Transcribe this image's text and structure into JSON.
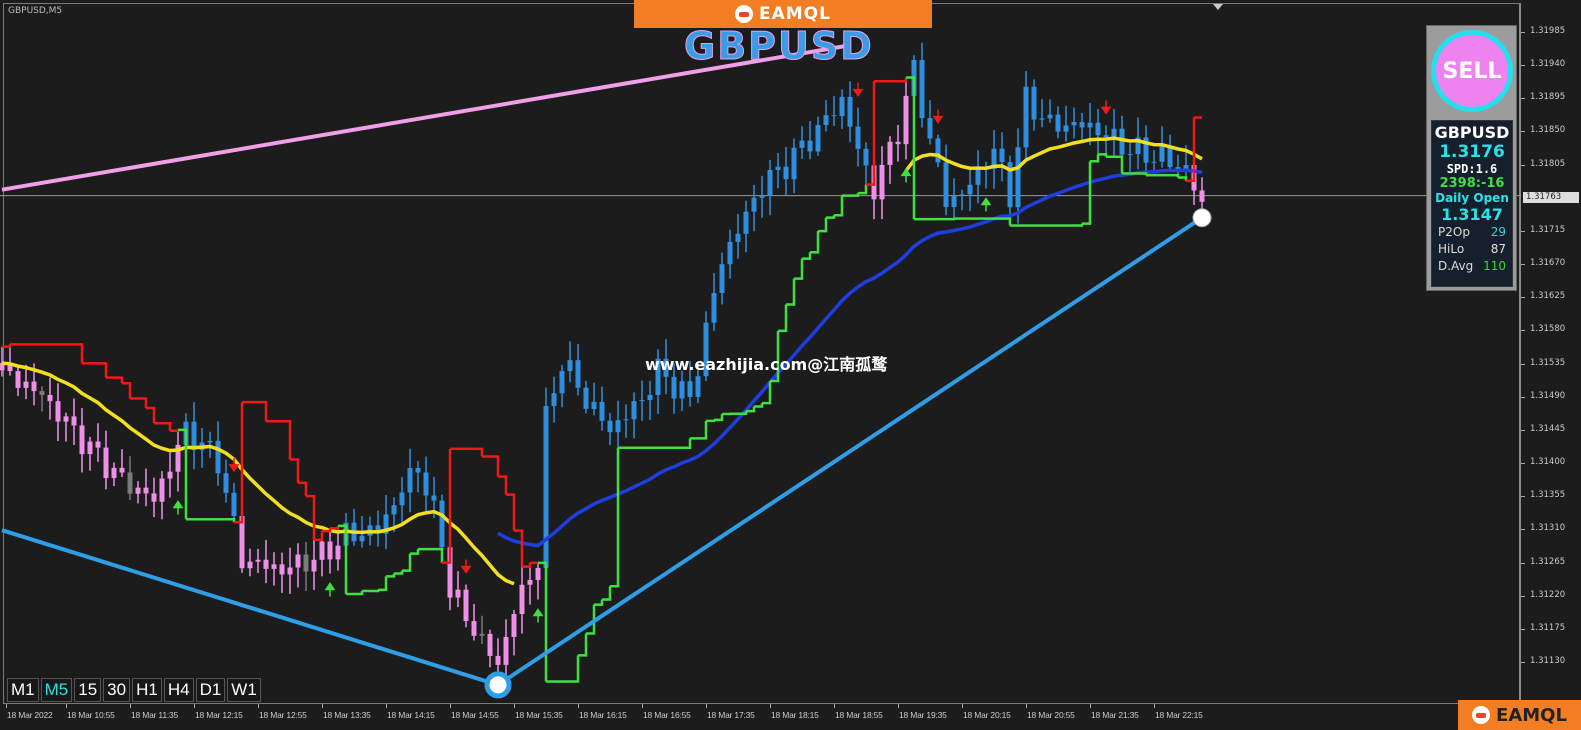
{
  "window": {
    "symbol_timeframe": "GBPUSD,M5"
  },
  "banner": {
    "logo_text": "EAMQL"
  },
  "watermark": {
    "big_symbol": "GBPUSD",
    "site": "www.eazhijia.com@江南孤鹜"
  },
  "panel": {
    "signal": "SELL",
    "symbol": "GBPUSD",
    "price": "1.3176",
    "spread": "SPD:1.6",
    "counter": "2398:-16",
    "daily_open_label": "Daily Open",
    "daily_open": "1.3147",
    "stats": [
      {
        "label": "P2Op",
        "value": "29",
        "color": "#3fd0d8"
      },
      {
        "label": "HiLo",
        "value": "87",
        "color": "#e0e0e0"
      },
      {
        "label": "D.Avg",
        "value": "110",
        "color": "#3fd040"
      }
    ]
  },
  "timeframes": [
    {
      "label": "M1",
      "active": false
    },
    {
      "label": "M5",
      "active": true
    },
    {
      "label": "15",
      "active": false
    },
    {
      "label": "30",
      "active": false
    },
    {
      "label": "H1",
      "active": false
    },
    {
      "label": "H4",
      "active": false
    },
    {
      "label": "D1",
      "active": false
    },
    {
      "label": "W1",
      "active": false
    }
  ],
  "footer_logo": "EAMQL",
  "chart_data": {
    "type": "candlestick",
    "symbol": "GBPUSD",
    "timeframe": "M5",
    "current_price_label": "1.31763",
    "y_ticks": [
      "1.31985",
      "1.31940",
      "1.31895",
      "1.31850",
      "1.31805",
      "1.31715",
      "1.31670",
      "1.31625",
      "1.31580",
      "1.31535",
      "1.31490",
      "1.31445",
      "1.31400",
      "1.31355",
      "1.31310",
      "1.31265",
      "1.31220",
      "1.31175",
      "1.31130"
    ],
    "x_ticks": [
      "18 Mar 2022",
      "18 Mar 10:55",
      "18 Mar 11:35",
      "18 Mar 12:15",
      "18 Mar 12:55",
      "18 Mar 13:35",
      "18 Mar 14:15",
      "18 Mar 14:55",
      "18 Mar 15:35",
      "18 Mar 16:15",
      "18 Mar 16:55",
      "18 Mar 17:35",
      "18 Mar 18:15",
      "18 Mar 18:55",
      "18 Mar 19:35",
      "18 Mar 20:15",
      "18 Mar 20:55",
      "18 Mar 21:35",
      "18 Mar 22:15"
    ],
    "price_path": [
      [
        "10:15",
        1.31526
      ],
      [
        "10:40",
        1.31492
      ],
      [
        "11:05",
        1.31431
      ],
      [
        "11:30",
        1.31377
      ],
      [
        "11:50",
        1.3135
      ],
      [
        "12:10",
        1.31445
      ],
      [
        "12:30",
        1.31404
      ],
      [
        "12:45",
        1.31269
      ],
      [
        "13:10",
        1.31255
      ],
      [
        "13:35",
        1.31275
      ],
      [
        "13:50",
        1.31302
      ],
      [
        "14:10",
        1.31309
      ],
      [
        "14:25",
        1.31364
      ],
      [
        "14:35",
        1.31397
      ],
      [
        "14:50",
        1.31296
      ],
      [
        "14:55",
        1.31228
      ],
      [
        "15:10",
        1.31174
      ],
      [
        "15:25",
        1.31126
      ],
      [
        "15:35",
        1.31201
      ],
      [
        "15:50",
        1.31269
      ],
      [
        "15:55",
        1.31459
      ],
      [
        "16:05",
        1.3154
      ],
      [
        "16:20",
        1.31486
      ],
      [
        "16:35",
        1.31445
      ],
      [
        "16:55",
        1.31486
      ],
      [
        "17:05",
        1.31526
      ],
      [
        "17:25",
        1.31486
      ],
      [
        "17:35",
        1.31581
      ],
      [
        "17:45",
        1.31676
      ],
      [
        "17:55",
        1.31716
      ],
      [
        "18:10",
        1.31777
      ],
      [
        "18:25",
        1.31805
      ],
      [
        "18:45",
        1.31852
      ],
      [
        "19:00",
        1.31893
      ],
      [
        "19:10",
        1.31825
      ],
      [
        "19:20",
        1.31771
      ],
      [
        "19:35",
        1.31852
      ],
      [
        "19:45",
        1.31933
      ],
      [
        "19:55",
        1.31838
      ],
      [
        "20:05",
        1.31757
      ],
      [
        "20:15",
        1.31764
      ],
      [
        "20:35",
        1.31825
      ],
      [
        "20:45",
        1.31764
      ],
      [
        "20:55",
        1.31893
      ],
      [
        "21:10",
        1.31859
      ],
      [
        "21:30",
        1.31859
      ],
      [
        "21:40",
        1.31852
      ],
      [
        "22:00",
        1.31825
      ],
      [
        "22:20",
        1.31814
      ],
      [
        "22:35",
        1.31798
      ],
      [
        "22:45",
        1.3175
      ]
    ],
    "trendlines": [
      {
        "color": "#f0a0e8",
        "from": [
          "10:15",
          1.31771
        ],
        "to": [
          "19:05",
          1.31967
        ]
      },
      {
        "color": "#2e9ee8",
        "from": [
          "10:15",
          1.31309
        ],
        "to": [
          "15:25",
          1.31099
        ]
      },
      {
        "color": "#2e9ee8",
        "from": [
          "15:25",
          1.31099
        ],
        "to": [
          "22:45",
          1.31733
        ]
      }
    ],
    "sell_arrows": [
      "12:40",
      "15:05",
      "19:10",
      "20:00",
      "21:45"
    ],
    "buy_arrows": [
      "12:05",
      "13:40",
      "15:50",
      "19:40",
      "20:30"
    ],
    "colors": {
      "bull": "#2e8fe0",
      "bear": "#ee90e8",
      "neutral": "#7a7a7a",
      "ma_fast": "#f2e020",
      "ma_slow": "#1e3ee0",
      "stop_up": "#3fe040",
      "stop_down": "#f01818"
    }
  }
}
